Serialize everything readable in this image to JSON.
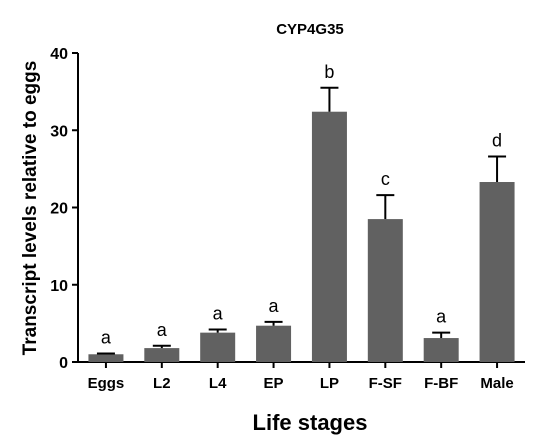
{
  "chart_data": {
    "type": "bar",
    "title": "CYP4G35",
    "xlabel": "Life stages",
    "ylabel": "Transcript levels relative to eggs",
    "ylim": [
      0,
      40
    ],
    "yticks": [
      0,
      10,
      20,
      30,
      40
    ],
    "categories": [
      "Eggs",
      "L2",
      "L4",
      "EP",
      "LP",
      "F-SF",
      "F-BF",
      "Male"
    ],
    "values": [
      1.0,
      1.8,
      3.8,
      4.7,
      32.4,
      18.5,
      3.1,
      23.3
    ],
    "errors": [
      0.1,
      0.3,
      0.4,
      0.5,
      3.1,
      3.1,
      0.7,
      3.3
    ],
    "significance_letters": [
      "a",
      "a",
      "a",
      "a",
      "b",
      "c",
      "a",
      "d"
    ],
    "grid": false,
    "bar_color": "#616161"
  }
}
